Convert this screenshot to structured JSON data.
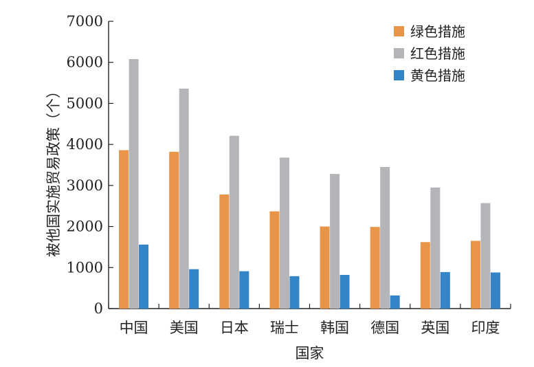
{
  "chart_data": {
    "type": "bar",
    "title": "",
    "xlabel": "国家",
    "ylabel": "被他国实施贸易政策（个）",
    "ylim": [
      0,
      7000
    ],
    "yticks": [
      0,
      1000,
      2000,
      3000,
      4000,
      5000,
      6000,
      7000
    ],
    "grid": false,
    "legend_position": "top-right",
    "categories": [
      "中国",
      "美国",
      "日本",
      "瑞士",
      "韩国",
      "德国",
      "英国",
      "印度"
    ],
    "series": [
      {
        "name": "绿色措施",
        "color": "#e8954a",
        "values": [
          3860,
          3820,
          2780,
          2370,
          2000,
          1990,
          1620,
          1650
        ]
      },
      {
        "name": "红色措施",
        "color": "#b4b5b8",
        "values": [
          6080,
          5360,
          4210,
          3680,
          3280,
          3450,
          2950,
          2570
        ]
      },
      {
        "name": "黄色措施",
        "color": "#3484c8",
        "values": [
          1560,
          960,
          910,
          790,
          820,
          320,
          890,
          880
        ]
      }
    ]
  }
}
